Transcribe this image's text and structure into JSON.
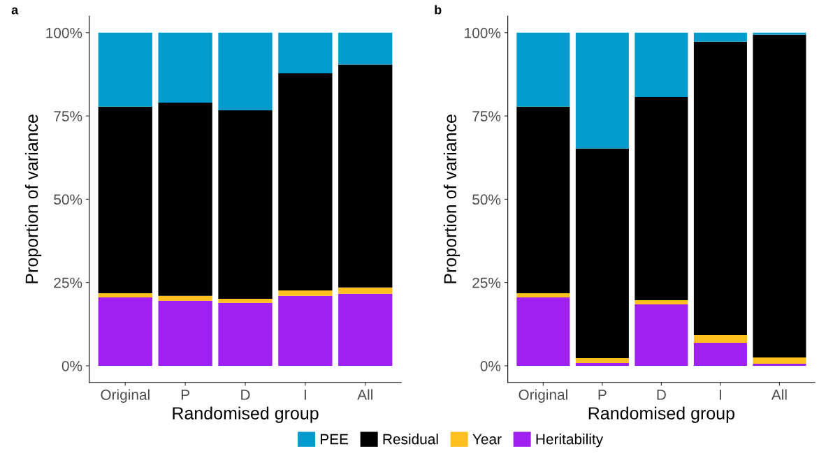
{
  "chart_data": [
    {
      "type": "bar",
      "stacked": true,
      "categories": [
        "Original",
        "P",
        "D",
        "I",
        "All"
      ],
      "xlabel": "Randomised group",
      "ylabel": "Proportion of variance",
      "annotations": [
        "a"
      ],
      "ylim": [
        -5,
        105
      ],
      "yticks": [
        {
          "value": 0,
          "label": "0%"
        },
        {
          "value": 25,
          "label": "25%"
        },
        {
          "value": 50,
          "label": "50%"
        },
        {
          "value": 75,
          "label": "75%"
        },
        {
          "value": 100,
          "label": "100%"
        }
      ],
      "legend": "bottom",
      "grid": false,
      "series": [
        {
          "name": "Heritability",
          "color": "#a020f0",
          "values": [
            20.5,
            19.5,
            18.9,
            21.0,
            21.6
          ]
        },
        {
          "name": "Year",
          "color": "#ffbf1f",
          "values": [
            1.3,
            1.5,
            1.2,
            1.6,
            1.9
          ]
        },
        {
          "name": "Residual",
          "color": "#000000",
          "values": [
            56.0,
            58.0,
            56.6,
            65.2,
            66.9
          ]
        },
        {
          "name": "PEE",
          "color": "#039bcd",
          "values": [
            22.2,
            21.0,
            23.3,
            12.2,
            9.6
          ]
        }
      ]
    },
    {
      "type": "bar",
      "stacked": true,
      "categories": [
        "Original",
        "P",
        "D",
        "I",
        "All"
      ],
      "xlabel": "Randomised group",
      "ylabel": "Proportion of variance",
      "annotations": [
        "b"
      ],
      "ylim": [
        -5,
        105
      ],
      "yticks": [
        {
          "value": 0,
          "label": "0%"
        },
        {
          "value": 25,
          "label": "25%"
        },
        {
          "value": 50,
          "label": "50%"
        },
        {
          "value": 75,
          "label": "75%"
        },
        {
          "value": 100,
          "label": "100%"
        }
      ],
      "grid": false,
      "series": [
        {
          "color": "#a020f0",
          "values": [
            20.5,
            0.8,
            18.4,
            6.9,
            0.6
          ]
        },
        {
          "color": "#ffbf1f",
          "values": [
            1.3,
            1.5,
            1.3,
            2.3,
            1.9
          ]
        },
        {
          "color": "#000000",
          "values": [
            56.0,
            62.9,
            61.0,
            88.1,
            96.9
          ]
        },
        {
          "color": "#039bcd",
          "values": [
            22.2,
            34.8,
            19.3,
            2.7,
            0.6
          ]
        }
      ]
    }
  ]
}
